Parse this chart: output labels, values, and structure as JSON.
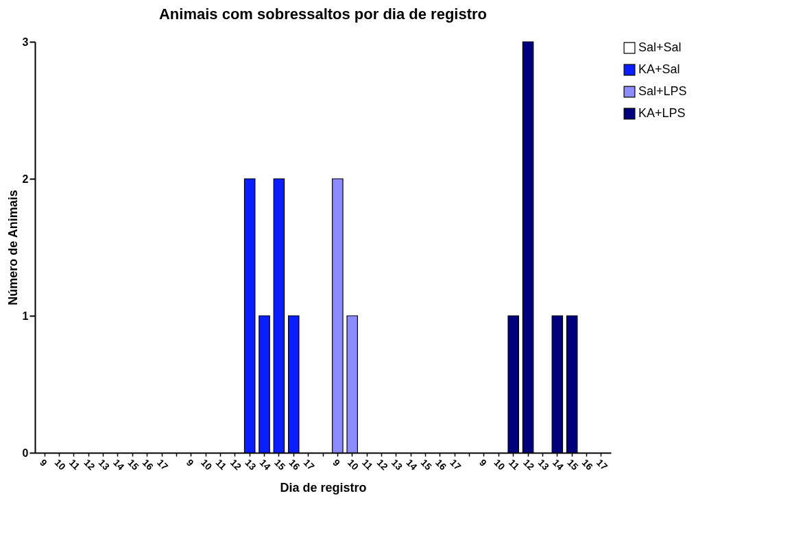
{
  "chart_data": {
    "type": "bar",
    "title": "Animais com sobressaltos por dia de registro",
    "xlabel": "Dia de registro",
    "ylabel": "Número de Animais",
    "categories": [
      "9",
      "10",
      "11",
      "12",
      "13",
      "14",
      "15",
      "16",
      "17",
      null,
      "9",
      "10",
      "11",
      "12",
      "13",
      "14",
      "15",
      "16",
      "17",
      null,
      "9",
      "10",
      "11",
      "12",
      "13",
      "14",
      "15",
      "16",
      "17",
      null,
      "9",
      "10",
      "11",
      "12",
      "13",
      "14",
      "15",
      "16",
      "17"
    ],
    "series": [
      {
        "name": "Sal+Sal",
        "color": "#ffffff",
        "values": [
          0,
          0,
          0,
          0,
          0,
          0,
          0,
          0,
          0,
          null,
          null,
          null,
          null,
          null,
          null,
          null,
          null,
          null,
          null,
          null,
          null,
          null,
          null,
          null,
          null,
          null,
          null,
          null,
          null,
          null,
          null,
          null,
          null,
          null,
          null,
          null,
          null,
          null,
          null
        ]
      },
      {
        "name": "KA+Sal",
        "color": "#0a1eff",
        "values": [
          null,
          null,
          null,
          null,
          null,
          null,
          null,
          null,
          null,
          null,
          0,
          0,
          0,
          0,
          2,
          1,
          2,
          1,
          0,
          null,
          null,
          null,
          null,
          null,
          null,
          null,
          null,
          null,
          null,
          null,
          null,
          null,
          null,
          null,
          null,
          null,
          null,
          null,
          null
        ]
      },
      {
        "name": "Sal+LPS",
        "color": "#8c8cff",
        "values": [
          null,
          null,
          null,
          null,
          null,
          null,
          null,
          null,
          null,
          null,
          null,
          null,
          null,
          null,
          null,
          null,
          null,
          null,
          null,
          null,
          2,
          1,
          0,
          0,
          0,
          0,
          0,
          0,
          0,
          null,
          null,
          null,
          null,
          null,
          null,
          null,
          null,
          null,
          null
        ]
      },
      {
        "name": "KA+LPS",
        "color": "#00007f",
        "values": [
          null,
          null,
          null,
          null,
          null,
          null,
          null,
          null,
          null,
          null,
          null,
          null,
          null,
          null,
          null,
          null,
          null,
          null,
          null,
          null,
          null,
          null,
          null,
          null,
          null,
          null,
          null,
          null,
          null,
          null,
          0,
          0,
          1,
          3,
          0,
          1,
          1,
          0,
          0
        ]
      }
    ],
    "ylim": [
      0,
      3
    ],
    "yticks": [
      0,
      1,
      2,
      3
    ],
    "legend": "top right"
  }
}
